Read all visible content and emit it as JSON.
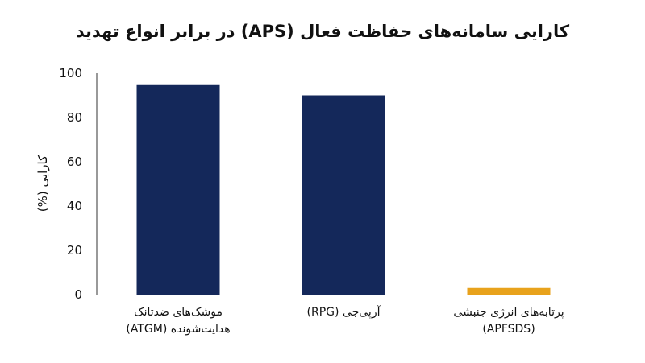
{
  "chart_data": {
    "type": "bar",
    "title": "کارایی سامانه‌های حفاظت فعال (APS) در برابر انواع تهدید",
    "ylabel": "کارایی (%)",
    "xlabel": "",
    "ylim": [
      0,
      100
    ],
    "yticks": [
      0,
      20,
      40,
      60,
      80,
      100
    ],
    "grid": false,
    "legend": "none",
    "categories": [
      [
        "موشک‌های ضدتانک",
        "هدایت‌شونده (ATGM)"
      ],
      [
        "آرپی‌جی (RPG)"
      ],
      [
        "پرتابه‌های انرژی جنبشی",
        "(APFSDS)"
      ]
    ],
    "values": [
      95,
      90,
      3
    ],
    "colors": [
      "#14285a",
      "#14285a",
      "#e8a21c"
    ],
    "axis_color": "#333333"
  }
}
